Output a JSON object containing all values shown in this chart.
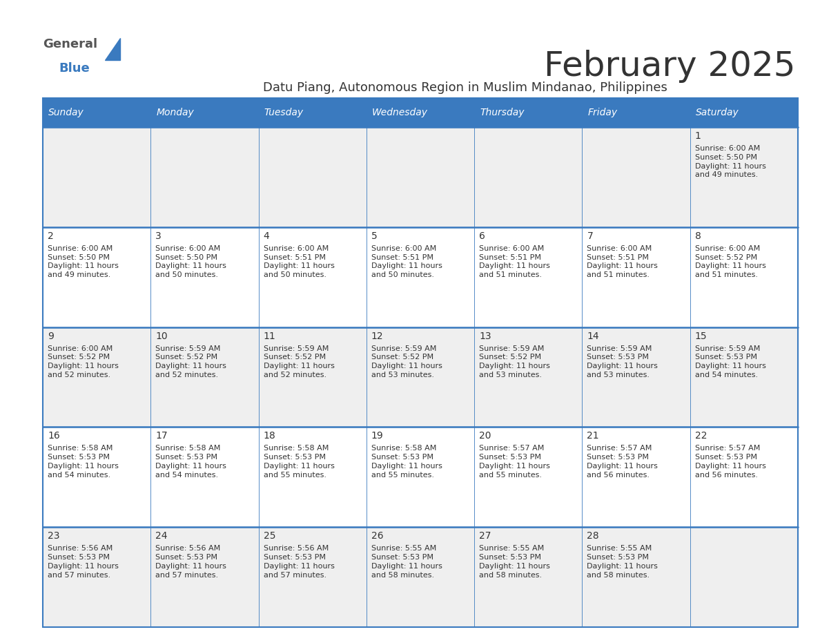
{
  "title": "February 2025",
  "subtitle": "Datu Piang, Autonomous Region in Muslim Mindanao, Philippines",
  "header_bg": "#3a7abf",
  "header_text": "#ffffff",
  "cell_bg_light": "#efefef",
  "cell_bg_white": "#ffffff",
  "divider_color": "#3a7abf",
  "text_color": "#333333",
  "days_of_week": [
    "Sunday",
    "Monday",
    "Tuesday",
    "Wednesday",
    "Thursday",
    "Friday",
    "Saturday"
  ],
  "calendar": [
    [
      {
        "day": null,
        "sunrise": null,
        "sunset": null,
        "daylight": ""
      },
      {
        "day": null,
        "sunrise": null,
        "sunset": null,
        "daylight": ""
      },
      {
        "day": null,
        "sunrise": null,
        "sunset": null,
        "daylight": ""
      },
      {
        "day": null,
        "sunrise": null,
        "sunset": null,
        "daylight": ""
      },
      {
        "day": null,
        "sunrise": null,
        "sunset": null,
        "daylight": ""
      },
      {
        "day": null,
        "sunrise": null,
        "sunset": null,
        "daylight": ""
      },
      {
        "day": 1,
        "sunrise": "6:00 AM",
        "sunset": "5:50 PM",
        "daylight": "11 hours\nand 49 minutes."
      }
    ],
    [
      {
        "day": 2,
        "sunrise": "6:00 AM",
        "sunset": "5:50 PM",
        "daylight": "11 hours\nand 49 minutes."
      },
      {
        "day": 3,
        "sunrise": "6:00 AM",
        "sunset": "5:50 PM",
        "daylight": "11 hours\nand 50 minutes."
      },
      {
        "day": 4,
        "sunrise": "6:00 AM",
        "sunset": "5:51 PM",
        "daylight": "11 hours\nand 50 minutes."
      },
      {
        "day": 5,
        "sunrise": "6:00 AM",
        "sunset": "5:51 PM",
        "daylight": "11 hours\nand 50 minutes."
      },
      {
        "day": 6,
        "sunrise": "6:00 AM",
        "sunset": "5:51 PM",
        "daylight": "11 hours\nand 51 minutes."
      },
      {
        "day": 7,
        "sunrise": "6:00 AM",
        "sunset": "5:51 PM",
        "daylight": "11 hours\nand 51 minutes."
      },
      {
        "day": 8,
        "sunrise": "6:00 AM",
        "sunset": "5:52 PM",
        "daylight": "11 hours\nand 51 minutes."
      }
    ],
    [
      {
        "day": 9,
        "sunrise": "6:00 AM",
        "sunset": "5:52 PM",
        "daylight": "11 hours\nand 52 minutes."
      },
      {
        "day": 10,
        "sunrise": "5:59 AM",
        "sunset": "5:52 PM",
        "daylight": "11 hours\nand 52 minutes."
      },
      {
        "day": 11,
        "sunrise": "5:59 AM",
        "sunset": "5:52 PM",
        "daylight": "11 hours\nand 52 minutes."
      },
      {
        "day": 12,
        "sunrise": "5:59 AM",
        "sunset": "5:52 PM",
        "daylight": "11 hours\nand 53 minutes."
      },
      {
        "day": 13,
        "sunrise": "5:59 AM",
        "sunset": "5:52 PM",
        "daylight": "11 hours\nand 53 minutes."
      },
      {
        "day": 14,
        "sunrise": "5:59 AM",
        "sunset": "5:53 PM",
        "daylight": "11 hours\nand 53 minutes."
      },
      {
        "day": 15,
        "sunrise": "5:59 AM",
        "sunset": "5:53 PM",
        "daylight": "11 hours\nand 54 minutes."
      }
    ],
    [
      {
        "day": 16,
        "sunrise": "5:58 AM",
        "sunset": "5:53 PM",
        "daylight": "11 hours\nand 54 minutes."
      },
      {
        "day": 17,
        "sunrise": "5:58 AM",
        "sunset": "5:53 PM",
        "daylight": "11 hours\nand 54 minutes."
      },
      {
        "day": 18,
        "sunrise": "5:58 AM",
        "sunset": "5:53 PM",
        "daylight": "11 hours\nand 55 minutes."
      },
      {
        "day": 19,
        "sunrise": "5:58 AM",
        "sunset": "5:53 PM",
        "daylight": "11 hours\nand 55 minutes."
      },
      {
        "day": 20,
        "sunrise": "5:57 AM",
        "sunset": "5:53 PM",
        "daylight": "11 hours\nand 55 minutes."
      },
      {
        "day": 21,
        "sunrise": "5:57 AM",
        "sunset": "5:53 PM",
        "daylight": "11 hours\nand 56 minutes."
      },
      {
        "day": 22,
        "sunrise": "5:57 AM",
        "sunset": "5:53 PM",
        "daylight": "11 hours\nand 56 minutes."
      }
    ],
    [
      {
        "day": 23,
        "sunrise": "5:56 AM",
        "sunset": "5:53 PM",
        "daylight": "11 hours\nand 57 minutes."
      },
      {
        "day": 24,
        "sunrise": "5:56 AM",
        "sunset": "5:53 PM",
        "daylight": "11 hours\nand 57 minutes."
      },
      {
        "day": 25,
        "sunrise": "5:56 AM",
        "sunset": "5:53 PM",
        "daylight": "11 hours\nand 57 minutes."
      },
      {
        "day": 26,
        "sunrise": "5:55 AM",
        "sunset": "5:53 PM",
        "daylight": "11 hours\nand 58 minutes."
      },
      {
        "day": 27,
        "sunrise": "5:55 AM",
        "sunset": "5:53 PM",
        "daylight": "11 hours\nand 58 minutes."
      },
      {
        "day": 28,
        "sunrise": "5:55 AM",
        "sunset": "5:53 PM",
        "daylight": "11 hours\nand 58 minutes."
      },
      {
        "day": null,
        "sunrise": null,
        "sunset": null,
        "daylight": ""
      }
    ]
  ],
  "logo_text1": "General",
  "logo_text2": "Blue",
  "fig_width": 11.88,
  "fig_height": 9.18,
  "dpi": 100
}
